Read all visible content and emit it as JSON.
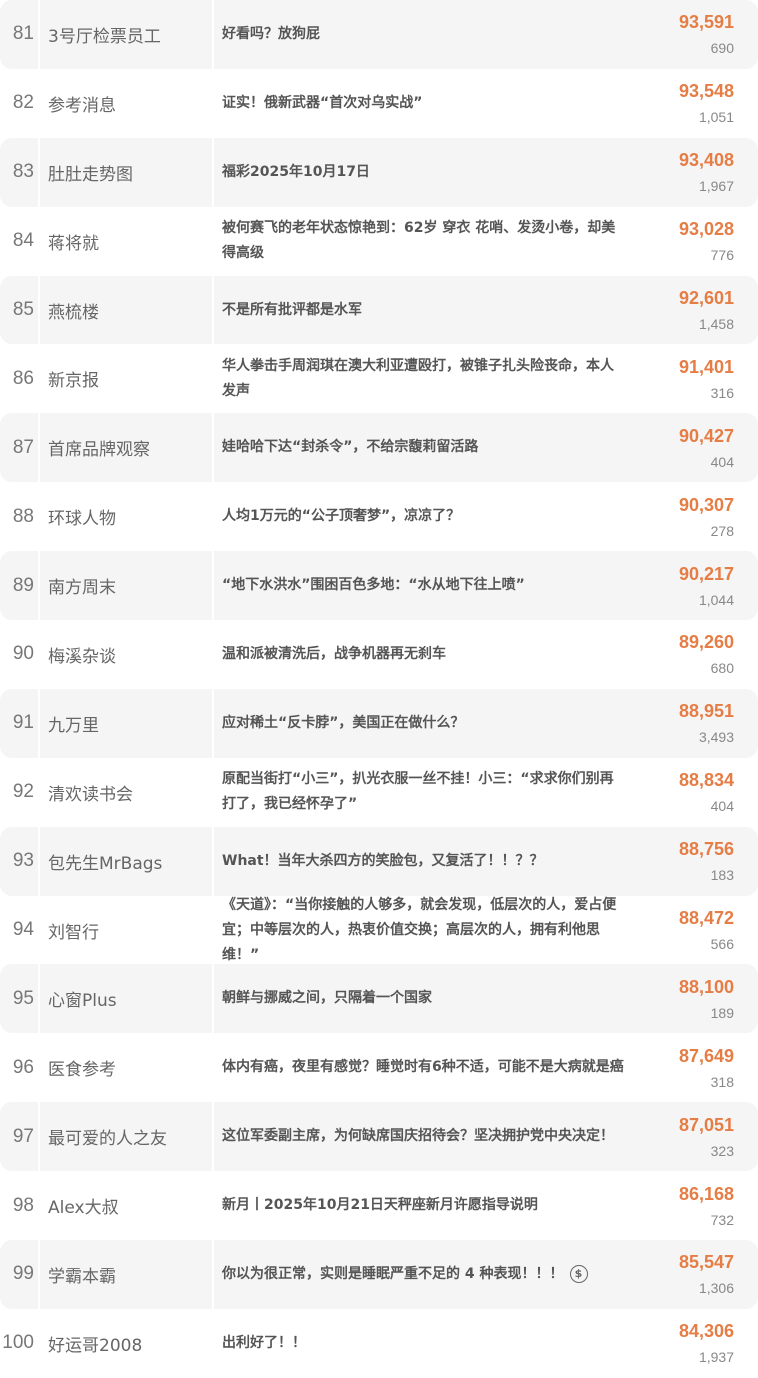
{
  "accent_color": "#e57d45",
  "rows": [
    {
      "rank": "81",
      "name": "3号厅检票员工",
      "title": "好看吗？放狗屁",
      "reads": "93,591",
      "likes": "690"
    },
    {
      "rank": "82",
      "name": "参考消息",
      "title": "证实！俄新武器“首次对乌实战”",
      "reads": "93,548",
      "likes": "1,051"
    },
    {
      "rank": "83",
      "name": "肚肚走势图",
      "title": "福彩2025年10月17日",
      "reads": "93,408",
      "likes": "1,967"
    },
    {
      "rank": "84",
      "name": "蒋将就",
      "title": "被何赛飞的老年状态惊艳到：62岁 穿衣 花哨、发烫小卷，却美得高级",
      "reads": "93,028",
      "likes": "776"
    },
    {
      "rank": "85",
      "name": "燕梳楼",
      "title": "不是所有批评都是水军",
      "reads": "92,601",
      "likes": "1,458"
    },
    {
      "rank": "86",
      "name": "新京报",
      "title": "华人拳击手周润琪在澳大利亚遭殴打，被锥子扎头险丧命，本人发声",
      "reads": "91,401",
      "likes": "316"
    },
    {
      "rank": "87",
      "name": "首席品牌观察",
      "title": "娃哈哈下达“封杀令”，不给宗馥莉留活路",
      "reads": "90,427",
      "likes": "404"
    },
    {
      "rank": "88",
      "name": "环球人物",
      "title": "人均1万元的“公子顶奢梦”，凉凉了？",
      "reads": "90,307",
      "likes": "278"
    },
    {
      "rank": "89",
      "name": "南方周末",
      "title": "“地下水洪水”围困百色多地：“水从地下往上喷”",
      "reads": "90,217",
      "likes": "1,044"
    },
    {
      "rank": "90",
      "name": "梅溪杂谈",
      "title": "温和派被清洗后，战争机器再无刹车",
      "reads": "89,260",
      "likes": "680"
    },
    {
      "rank": "91",
      "name": "九万里",
      "title": "应对稀土“反卡脖”，美国正在做什么？",
      "reads": "88,951",
      "likes": "3,493"
    },
    {
      "rank": "92",
      "name": "清欢读书会",
      "title": "原配当街打“小三”，扒光衣服一丝不挂！小三：“求求你们别再打了，我已经怀孕了”",
      "reads": "88,834",
      "likes": "404"
    },
    {
      "rank": "93",
      "name": "包先生MrBags",
      "title": "What！当年大杀四方的笑脸包，又复活了！！？？",
      "reads": "88,756",
      "likes": "183"
    },
    {
      "rank": "94",
      "name": "刘智行",
      "title": "《天道》：“当你接触的人够多，就会发现，低层次的人，爱占便宜；中等层次的人，热衷价值交换；高层次的人，拥有利他思维！”",
      "reads": "88,472",
      "likes": "566"
    },
    {
      "rank": "95",
      "name": "心窗Plus",
      "title": "朝鲜与挪威之间，只隔着一个国家",
      "reads": "88,100",
      "likes": "189"
    },
    {
      "rank": "96",
      "name": "医食参考",
      "title": "体内有癌，夜里有感觉？睡觉时有6种不适，可能不是大病就是癌",
      "reads": "87,649",
      "likes": "318"
    },
    {
      "rank": "97",
      "name": "最可爱的人之友",
      "title": "这位军委副主席，为何缺席国庆招待会？坚决拥护党中央决定！",
      "reads": "87,051",
      "likes": "323"
    },
    {
      "rank": "98",
      "name": "Alex大叔",
      "title": "新月丨2025年10月21日天秤座新月许愿指导说明",
      "reads": "86,168",
      "likes": "732"
    },
    {
      "rank": "99",
      "name": "学霸本霸",
      "title": "你以为很正常，实则是睡眠严重不足的 4 种表现！！！",
      "reads": "85,547",
      "likes": "1,306",
      "icon": "money-hand-icon"
    },
    {
      "rank": "100",
      "name": "好运哥2008",
      "title": "出利好了！！",
      "reads": "84,306",
      "likes": "1,937"
    }
  ]
}
